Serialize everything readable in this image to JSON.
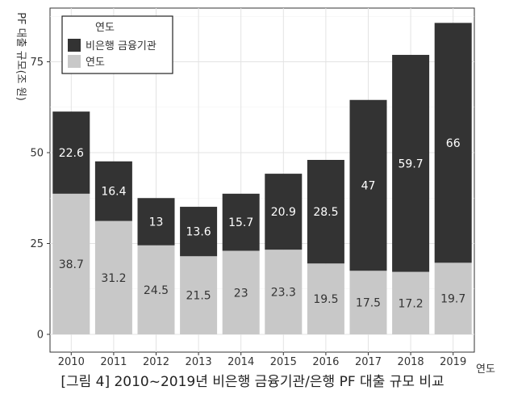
{
  "caption": "[그림 4] 2010~2019년 비은행 금융기관/은행 PF 대출 규모 비교",
  "chart_data": {
    "type": "bar",
    "stacked": true,
    "categories": [
      "2010",
      "2011",
      "2012",
      "2013",
      "2014",
      "2015",
      "2016",
      "2017",
      "2018",
      "2019"
    ],
    "series": [
      {
        "name": "연도",
        "color": "#c8c8c8",
        "label_color": "#333333",
        "values": [
          38.7,
          31.2,
          24.5,
          21.5,
          23,
          23.3,
          19.5,
          17.5,
          17.2,
          19.7
        ]
      },
      {
        "name": "비은행 금융기관",
        "color": "#333333",
        "label_color": "#ffffff",
        "values": [
          22.6,
          16.4,
          13,
          13.6,
          15.7,
          20.9,
          28.5,
          47,
          59.7,
          66
        ]
      }
    ],
    "ylabel": "PF 대출 규모(조 원)",
    "xlabel": "연도",
    "legend_title": "연도",
    "legend_position": "top-left",
    "ylim": [
      0,
      90
    ],
    "yticks": [
      0,
      25,
      50,
      75
    ],
    "grid": true
  }
}
